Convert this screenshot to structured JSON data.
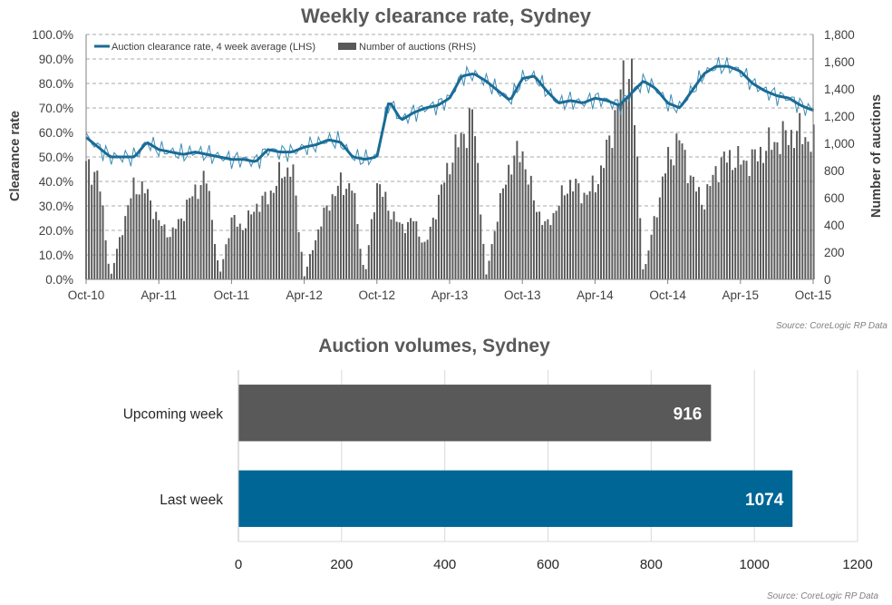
{
  "chart_data": [
    {
      "type": "line+bar",
      "title": "Weekly clearance rate, Sydney",
      "ylabel_left": "Clearance rate",
      "ylabel_right": "Number of auctions",
      "ylim_left": [
        0,
        100
      ],
      "ylim_right": [
        0,
        1800
      ],
      "yticks_left": [
        "0.0%",
        "10.0%",
        "20.0%",
        "30.0%",
        "40.0%",
        "50.0%",
        "60.0%",
        "70.0%",
        "80.0%",
        "90.0%",
        "100.0%"
      ],
      "yticks_right": [
        "0",
        "200",
        "400",
        "600",
        "800",
        "1,000",
        "1,200",
        "1,400",
        "1,600",
        "1,800"
      ],
      "xticks": [
        "Oct-10",
        "Apr-11",
        "Oct-11",
        "Apr-12",
        "Oct-12",
        "Apr-13",
        "Oct-13",
        "Apr-14",
        "Oct-14",
        "Apr-15",
        "Oct-15"
      ],
      "grid": "horizontal dashed",
      "legend_placement": "top-left",
      "source": "Source: CoreLogic  RP Data",
      "colors": {
        "line": "#1a6b96",
        "line_thin": "#3d8cb3",
        "bars": "#595959"
      },
      "series": [
        {
          "name": "Auction clearance rate, 4 week average (LHS)",
          "kind": "line",
          "months": [
            0,
            1,
            2,
            3,
            4,
            5,
            6,
            7,
            8,
            9,
            10,
            11,
            12,
            13,
            14,
            15,
            16,
            17,
            18,
            19,
            20,
            21,
            22,
            23,
            24,
            25,
            26,
            27,
            28,
            29,
            30,
            31,
            32,
            33,
            34,
            35,
            36,
            37,
            38,
            39,
            40,
            41,
            42,
            43,
            44,
            45,
            46,
            47,
            48,
            49,
            50,
            51,
            52,
            53,
            54,
            55,
            56,
            57,
            58,
            59,
            60
          ],
          "values": [
            58,
            54,
            50,
            50,
            50,
            56,
            53,
            52,
            51,
            52,
            51,
            50,
            49,
            49,
            48,
            53,
            52,
            52,
            54,
            55,
            57,
            56,
            50,
            49,
            50,
            73,
            65,
            68,
            70,
            71,
            74,
            83,
            84,
            81,
            77,
            73,
            82,
            83,
            77,
            72,
            73,
            72,
            74,
            73,
            71,
            76,
            81,
            78,
            72,
            70,
            77,
            84,
            87,
            87,
            85,
            80,
            77,
            75,
            74,
            71,
            69
          ]
        },
        {
          "name": "Number of auctions (RHS)",
          "kind": "bar",
          "months": [
            0,
            1,
            2,
            3,
            4,
            5,
            6,
            7,
            8,
            9,
            10,
            11,
            12,
            13,
            14,
            15,
            16,
            17,
            18,
            19,
            20,
            21,
            22,
            23,
            24,
            25,
            26,
            27,
            28,
            29,
            30,
            31,
            32,
            33,
            34,
            35,
            36,
            37,
            38,
            39,
            40,
            41,
            42,
            43,
            44,
            45,
            46,
            47,
            48,
            49,
            50,
            51,
            52,
            53,
            54,
            55,
            56,
            57,
            58,
            59,
            60
          ],
          "values": [
            820,
            780,
            10,
            380,
            700,
            640,
            420,
            320,
            480,
            660,
            740,
            20,
            440,
            380,
            540,
            600,
            760,
            840,
            20,
            320,
            560,
            700,
            680,
            10,
            720,
            520,
            380,
            440,
            240,
            560,
            860,
            1050,
            1210,
            20,
            500,
            860,
            940,
            560,
            380,
            560,
            720,
            620,
            680,
            940,
            1350,
            1600,
            20,
            480,
            880,
            1030,
            720,
            560,
            820,
            900,
            860,
            880,
            960,
            1020,
            1060,
            1080,
            1000
          ]
        }
      ]
    },
    {
      "type": "bar",
      "orientation": "horizontal",
      "title": "Auction volumes, Sydney",
      "categories": [
        "Upcoming week",
        "Last week"
      ],
      "values": [
        916,
        1074
      ],
      "xlim": [
        0,
        1200
      ],
      "xticks": [
        "0",
        "200",
        "400",
        "600",
        "800",
        "1000",
        "1200"
      ],
      "grid": "vertical",
      "source": "Source: CoreLogic  RP Data",
      "colors": [
        "#595959",
        "#006695"
      ]
    }
  ]
}
